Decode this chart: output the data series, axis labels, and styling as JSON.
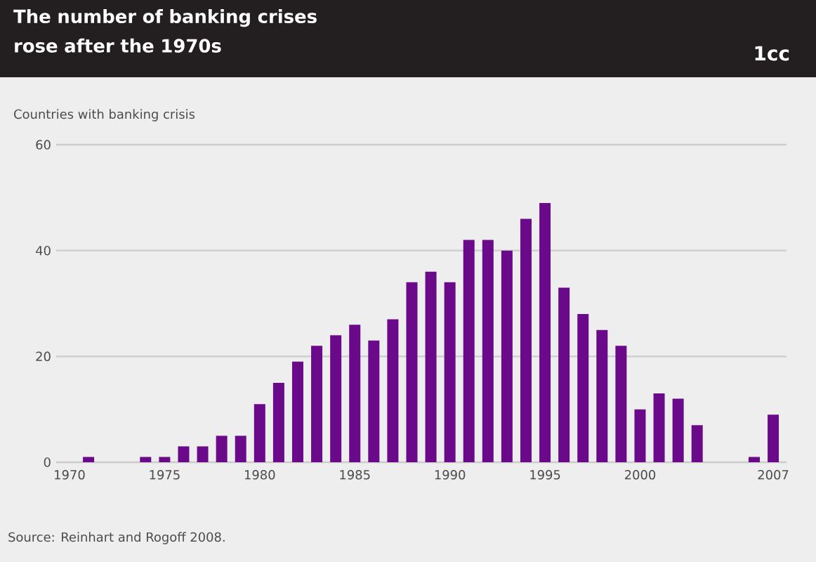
{
  "chart_data": {
    "type": "bar",
    "title": "The number of banking crises rose after the 1970s",
    "ylabel": "Countries with banking crisis",
    "annotations": [
      "1cc",
      "Source: Reinhart and Rogoff 2008."
    ],
    "x": [
      1970,
      1971,
      1972,
      1973,
      1974,
      1975,
      1976,
      1977,
      1978,
      1979,
      1980,
      1981,
      1982,
      1983,
      1984,
      1985,
      1986,
      1987,
      1988,
      1989,
      1990,
      1991,
      1992,
      1993,
      1994,
      1995,
      1996,
      1997,
      1998,
      1999,
      2000,
      2001,
      2002,
      2003,
      2004,
      2005,
      2006,
      2007
    ],
    "values": [
      0,
      1,
      0,
      0,
      1,
      1,
      3,
      3,
      5,
      5,
      11,
      15,
      19,
      22,
      24,
      26,
      23,
      27,
      34,
      36,
      34,
      42,
      42,
      40,
      46,
      49,
      33,
      28,
      25,
      22,
      10,
      13,
      12,
      7,
      0,
      0,
      1,
      9
    ],
    "color": "#6a0a8a",
    "xlim": [
      1969.3,
      2007.7
    ],
    "xticks": [
      1970,
      1975,
      1980,
      1985,
      1990,
      1995,
      2000,
      2007
    ],
    "ylim": [
      0,
      60
    ],
    "yticks": [
      0,
      20,
      40,
      60
    ],
    "grid": "y"
  }
}
